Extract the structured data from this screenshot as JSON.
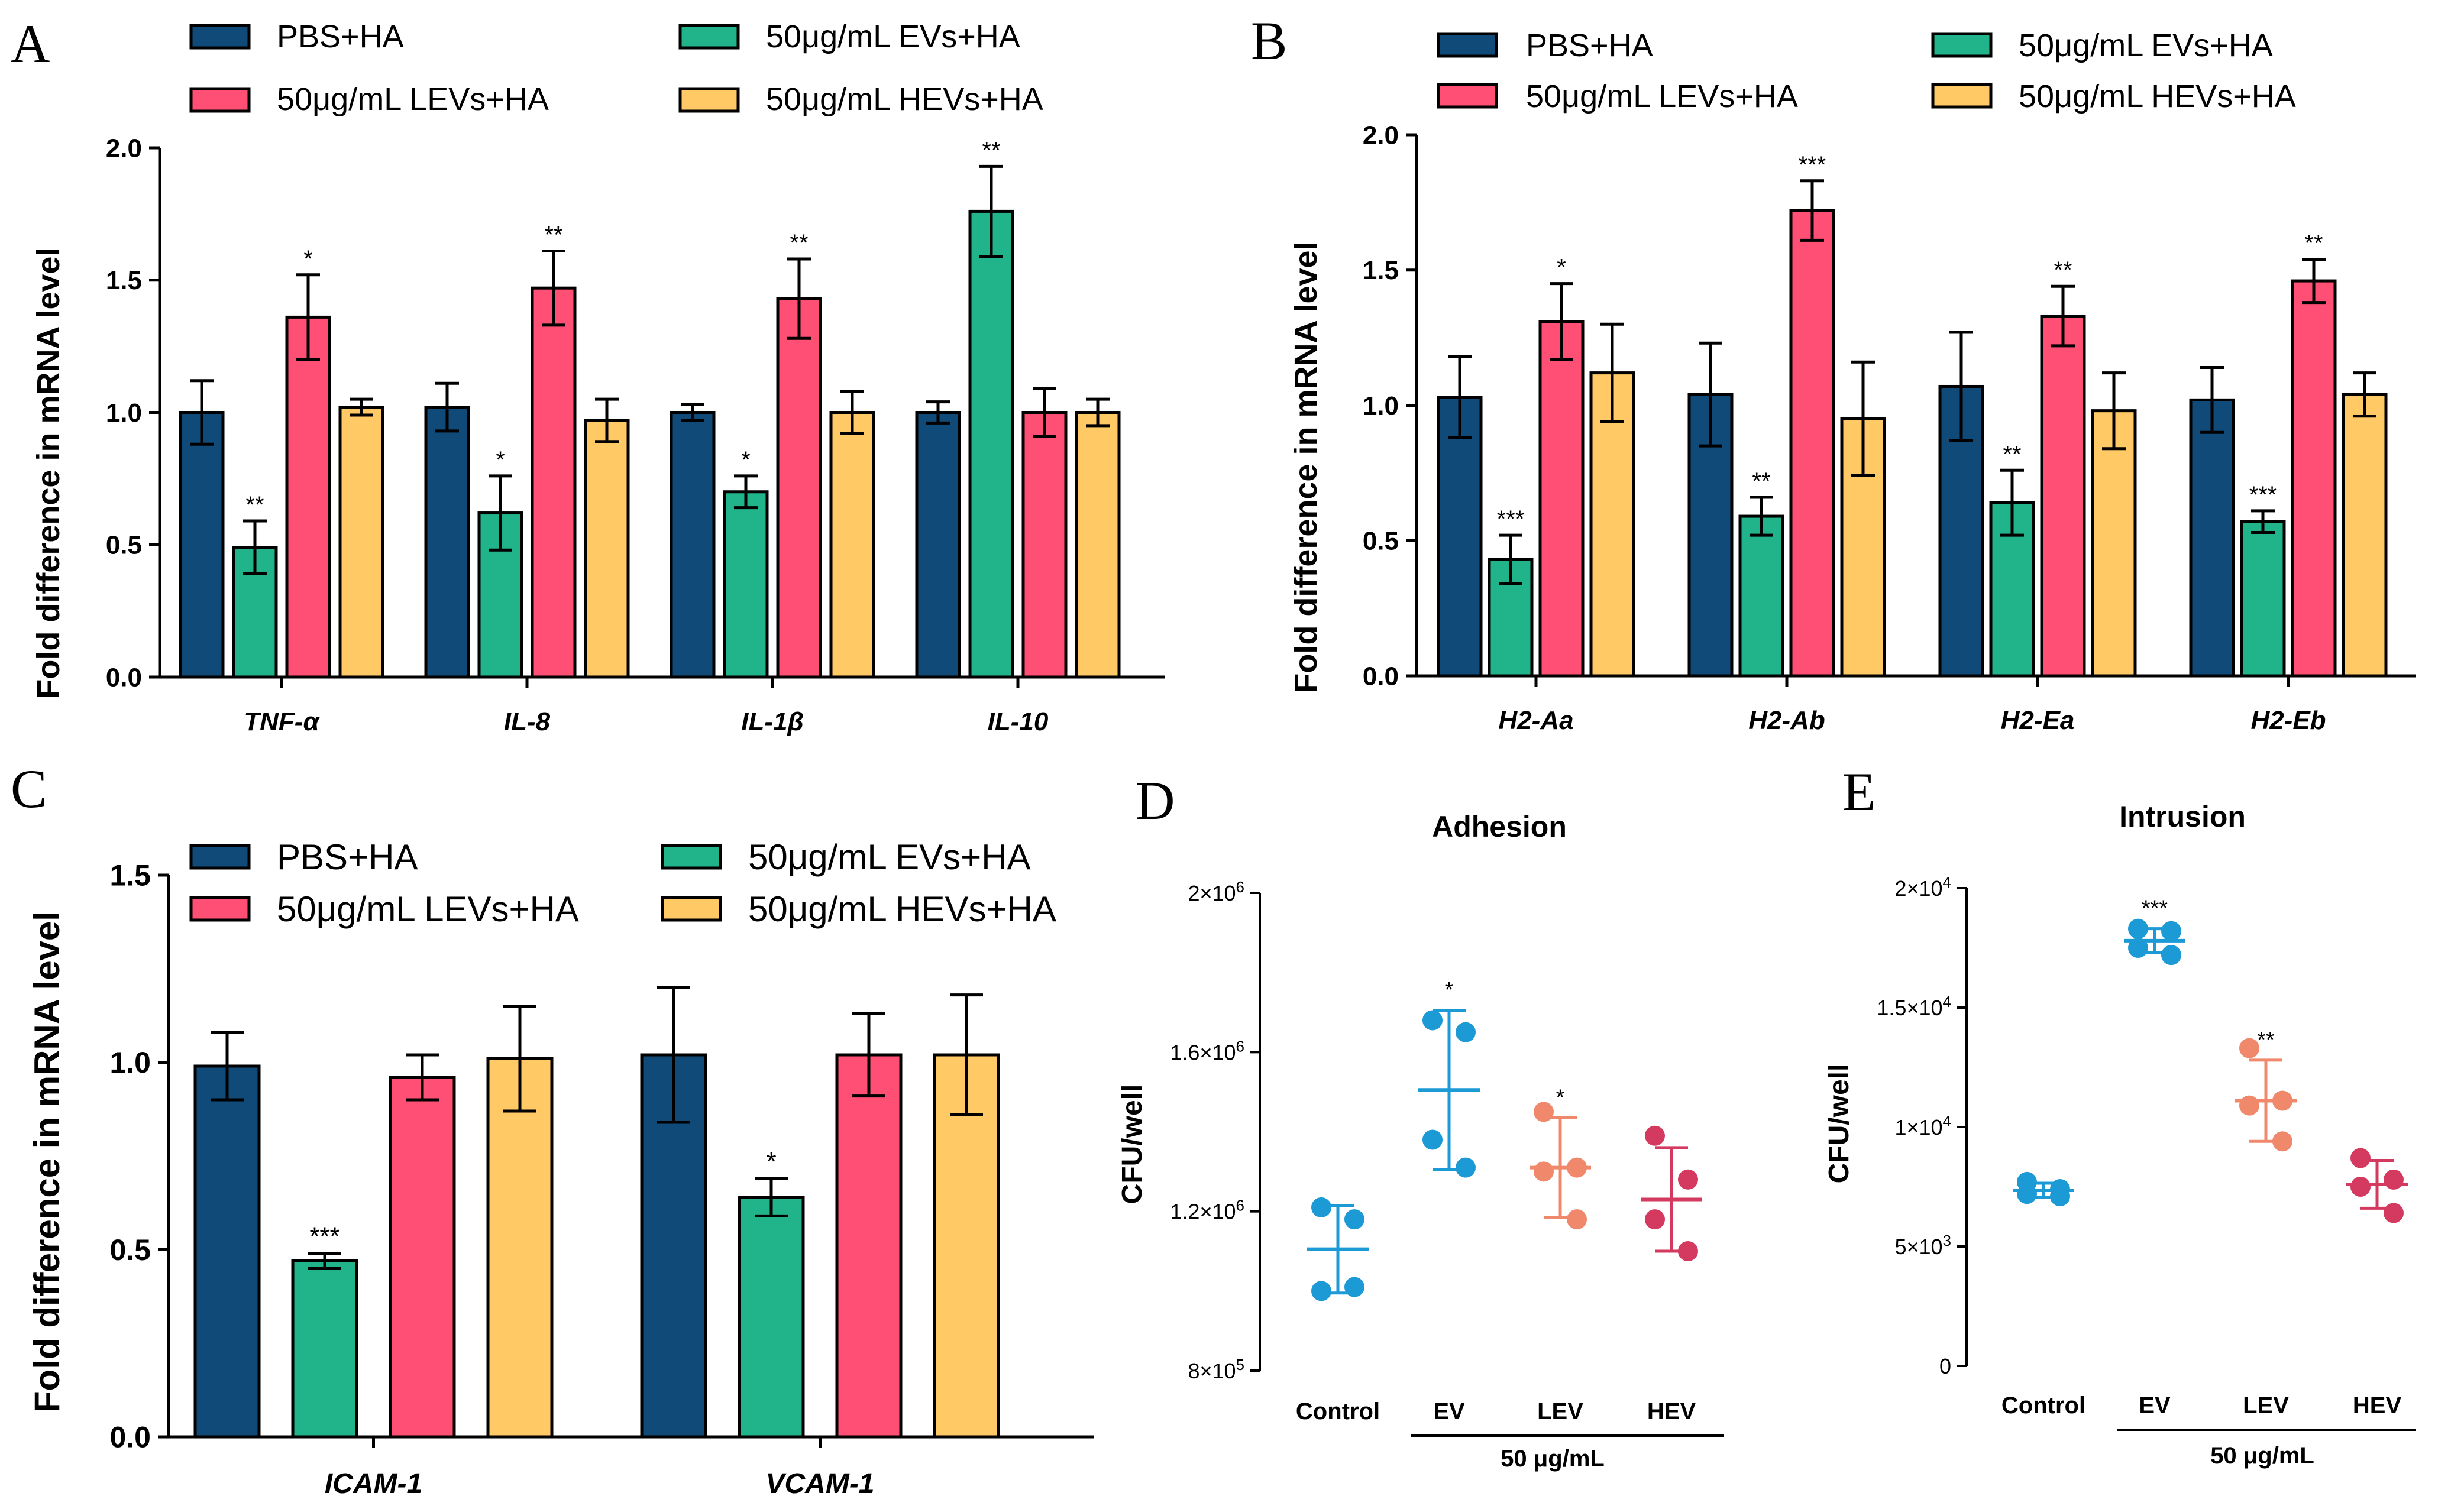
{
  "colors": {
    "pbs": "#0f4a78",
    "ev": "#21b38a",
    "lev": "#ff4f75",
    "hev": "#ffc966",
    "control": "#1c9ad6",
    "ev_dot": "#1c9ad6",
    "lev_dot": "#f0896b",
    "hev_dot": "#d4395f"
  },
  "legend": {
    "pbs": "PBS+HA",
    "ev": "50μg/mL EVs+HA",
    "lev": "50μg/mL LEVs+HA",
    "hev": "50μg/mL HEVs+HA"
  },
  "chart_data": [
    {
      "id": "A",
      "type": "bar",
      "panel_label": "A",
      "ylabel": "Fold difference in mRNA level",
      "ylim": [
        0,
        2.0
      ],
      "yticks": [
        "0.0",
        "0.5",
        "1.0",
        "1.5",
        "2.0"
      ],
      "categories": [
        "TNF-α",
        "IL-8",
        "IL-1β",
        "IL-10"
      ],
      "series": [
        {
          "name": "PBS+HA",
          "values": [
            1.0,
            1.02,
            1.0,
            1.0
          ],
          "errors": [
            0.12,
            0.09,
            0.03,
            0.04
          ],
          "sig": [
            "",
            "",
            "",
            ""
          ]
        },
        {
          "name": "50μg/mL EVs+HA",
          "values": [
            0.49,
            0.62,
            0.7,
            1.76
          ],
          "errors": [
            0.1,
            0.14,
            0.06,
            0.17
          ],
          "sig": [
            "**",
            "*",
            "*",
            "**"
          ]
        },
        {
          "name": "50μg/mL LEVs+HA",
          "values": [
            1.36,
            1.47,
            1.43,
            1.0
          ],
          "errors": [
            0.16,
            0.14,
            0.15,
            0.09
          ],
          "sig": [
            "*",
            "**",
            "**",
            ""
          ]
        },
        {
          "name": "50μg/mL HEVs+HA",
          "values": [
            1.02,
            0.97,
            1.0,
            1.0
          ],
          "errors": [
            0.03,
            0.08,
            0.08,
            0.05
          ],
          "sig": [
            "",
            "",
            "",
            ""
          ]
        }
      ]
    },
    {
      "id": "B",
      "type": "bar",
      "panel_label": "B",
      "ylabel": "Fold difference in mRNA level",
      "ylim": [
        0,
        2.0
      ],
      "yticks": [
        "0.0",
        "0.5",
        "1.0",
        "1.5",
        "2.0"
      ],
      "categories": [
        "H2-Aa",
        "H2-Ab",
        "H2-Ea",
        "H2-Eb"
      ],
      "series": [
        {
          "name": "PBS+HA",
          "values": [
            1.03,
            1.04,
            1.07,
            1.02
          ],
          "errors": [
            0.15,
            0.19,
            0.2,
            0.12
          ],
          "sig": [
            "",
            "",
            "",
            ""
          ]
        },
        {
          "name": "50μg/mL EVs+HA",
          "values": [
            0.43,
            0.59,
            0.64,
            0.57
          ],
          "errors": [
            0.09,
            0.07,
            0.12,
            0.04
          ],
          "sig": [
            "***",
            "**",
            "**",
            "***"
          ]
        },
        {
          "name": "50μg/mL LEVs+HA",
          "values": [
            1.31,
            1.72,
            1.33,
            1.46
          ],
          "errors": [
            0.14,
            0.11,
            0.11,
            0.08
          ],
          "sig": [
            "*",
            "***",
            "**",
            "**"
          ]
        },
        {
          "name": "50μg/mL HEVs+HA",
          "values": [
            1.12,
            0.95,
            0.98,
            1.04
          ],
          "errors": [
            0.18,
            0.21,
            0.14,
            0.08
          ],
          "sig": [
            "",
            "",
            "",
            ""
          ]
        }
      ]
    },
    {
      "id": "C",
      "type": "bar",
      "panel_label": "C",
      "ylabel": "Fold difference in mRNA level",
      "ylim": [
        0,
        1.5
      ],
      "yticks": [
        "0.0",
        "0.5",
        "1.0",
        "1.5"
      ],
      "categories": [
        "ICAM-1",
        "VCAM-1"
      ],
      "series": [
        {
          "name": "PBS+HA",
          "values": [
            0.99,
            1.02
          ],
          "errors": [
            0.09,
            0.18
          ],
          "sig": [
            "",
            ""
          ]
        },
        {
          "name": "50μg/mL EVs+HA",
          "values": [
            0.47,
            0.64
          ],
          "errors": [
            0.02,
            0.05
          ],
          "sig": [
            "***",
            "*"
          ]
        },
        {
          "name": "50μg/mL LEVs+HA",
          "values": [
            0.96,
            1.02
          ],
          "errors": [
            0.06,
            0.11
          ],
          "sig": [
            "",
            ""
          ]
        },
        {
          "name": "50μg/mL HEVs+HA",
          "values": [
            1.01,
            1.02
          ],
          "errors": [
            0.14,
            0.16
          ],
          "sig": [
            "",
            ""
          ]
        }
      ]
    },
    {
      "id": "D",
      "type": "scatter",
      "panel_label": "D",
      "title": "Adhesion",
      "ylabel": "CFU/well",
      "ylim": [
        800000,
        2000000
      ],
      "yticks": [
        {
          "base": "8×10",
          "exp": "5",
          "value": 800000
        },
        {
          "base": "1.2×10",
          "exp": "6",
          "value": 1200000
        },
        {
          "base": "1.6×10",
          "exp": "6",
          "value": 1600000
        },
        {
          "base": "2×10",
          "exp": "6",
          "value": 2000000
        }
      ],
      "categories": [
        "Control",
        "EV",
        "LEV",
        "HEV"
      ],
      "group_label": "50 μg/mL",
      "points": [
        [
          1210000,
          1180000,
          1000000,
          1010000
        ],
        [
          1680000,
          1650000,
          1380000,
          1310000
        ],
        [
          1450000,
          1310000,
          1300000,
          1180000
        ],
        [
          1390000,
          1280000,
          1180000,
          1100000
        ]
      ],
      "mean": [
        1105000,
        1505000,
        1310000,
        1230000
      ],
      "sd": [
        110000,
        200000,
        125000,
        130000
      ],
      "sig": [
        "",
        "*",
        "*",
        ""
      ]
    },
    {
      "id": "E",
      "type": "scatter",
      "panel_label": "E",
      "title": "Intrusion",
      "ylabel": "CFU/well",
      "ylim": [
        0,
        20000
      ],
      "yticks": [
        {
          "base": "0",
          "exp": "",
          "value": 0
        },
        {
          "base": "5×10",
          "exp": "3",
          "value": 5000
        },
        {
          "base": "1×10",
          "exp": "4",
          "value": 10000
        },
        {
          "base": "1.5×10",
          "exp": "4",
          "value": 15000
        },
        {
          "base": "2×10",
          "exp": "4",
          "value": 20000
        }
      ],
      "categories": [
        "Control",
        "EV",
        "LEV",
        "HEV"
      ],
      "group_label": "50 μg/mL",
      "points": [
        [
          7700,
          7400,
          7200,
          7100
        ],
        [
          18300,
          18200,
          17500,
          17200
        ],
        [
          13300,
          11100,
          10900,
          9400
        ],
        [
          8700,
          7800,
          7500,
          6400
        ]
      ],
      "mean": [
        7350,
        17800,
        11100,
        7600
      ],
      "sd": [
        300,
        500,
        1700,
        1000
      ],
      "sig": [
        "",
        "***",
        "**",
        ""
      ]
    }
  ]
}
